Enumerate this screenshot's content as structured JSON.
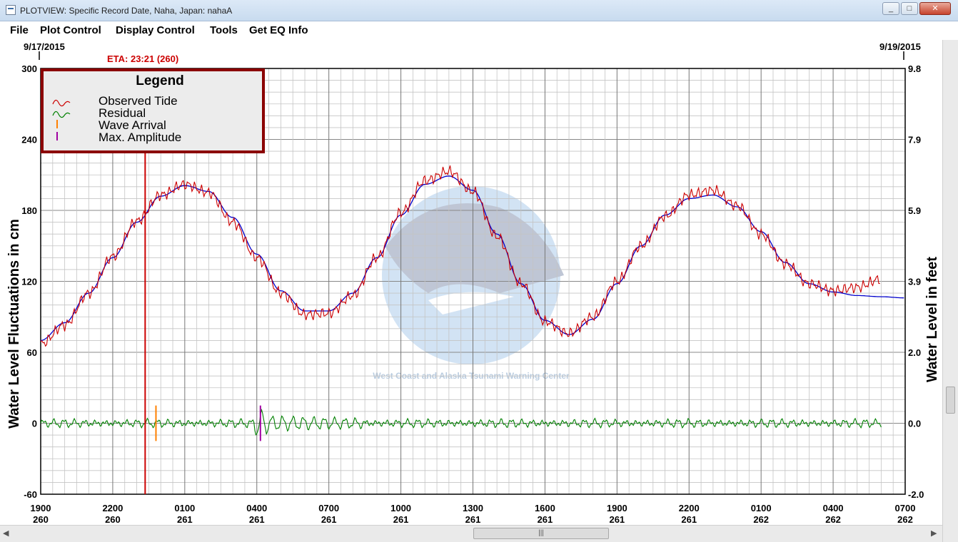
{
  "window": {
    "title": "PLOTVIEW: Specific Record Date, Naha, Japan: nahaA",
    "minimize": "_",
    "maximize": "□",
    "close": "✕"
  },
  "menu": [
    "File",
    "Plot Control",
    "Display Control",
    "Tools",
    "Get EQ Info"
  ],
  "plot": {
    "date_start": "9/17/2015",
    "date_end": "9/19/2015",
    "eta_label": "ETA: 23:21 (260)",
    "y_left_label": "Water Level Fluctuations in cm",
    "y_right_label": "Water Level in feet",
    "y_left_ticks": [
      "300",
      "240",
      "180",
      "120",
      "60",
      "0",
      "-60"
    ],
    "y_right_ticks": [
      "9.8",
      "7.9",
      "5.9",
      "3.9",
      "2.0",
      "0.0",
      "-2.0"
    ],
    "x_ticks": [
      {
        "time": "1900",
        "day": "260"
      },
      {
        "time": "2200",
        "day": "260"
      },
      {
        "time": "0100",
        "day": "261"
      },
      {
        "time": "0400",
        "day": "261"
      },
      {
        "time": "0700",
        "day": "261"
      },
      {
        "time": "1000",
        "day": "261"
      },
      {
        "time": "1300",
        "day": "261"
      },
      {
        "time": "1600",
        "day": "261"
      },
      {
        "time": "1900",
        "day": "261"
      },
      {
        "time": "2200",
        "day": "261"
      },
      {
        "time": "0100",
        "day": "262"
      },
      {
        "time": "0400",
        "day": "262"
      },
      {
        "time": "0700",
        "day": "262"
      }
    ],
    "legend": {
      "title": "Legend",
      "items": [
        {
          "label": "Observed Tide",
          "color": "#cc0000",
          "icon": "wave-icon"
        },
        {
          "label": "Residual",
          "color": "#008000",
          "icon": "wave-icon"
        },
        {
          "label": "Wave Arrival",
          "color": "#ff8000",
          "icon": "tick-icon"
        },
        {
          "label": "Max. Amplitude",
          "color": "#a000a0",
          "icon": "tick-icon"
        }
      ]
    },
    "watermark_text": "West Coast and Alaska Tsunami Warning Center"
  },
  "chart_data": {
    "type": "line",
    "x_unit": "hours since 19:00 day 260",
    "ylim": [
      -60,
      300
    ],
    "xlim": [
      0,
      36
    ],
    "series": [
      {
        "name": "Observed Tide",
        "color": "#cc0000",
        "x": [
          0,
          1,
          2,
          3,
          4,
          5,
          6,
          7,
          8,
          9,
          10,
          11,
          12,
          13,
          14,
          15,
          16,
          17,
          18,
          19,
          20,
          21,
          22,
          23,
          24,
          25,
          26,
          27,
          28,
          29,
          30,
          31,
          32,
          33,
          34,
          35
        ],
        "y": [
          67,
          83,
          110,
          141,
          171,
          193,
          202,
          195,
          170,
          140,
          110,
          92,
          93,
          108,
          140,
          178,
          205,
          213,
          196,
          158,
          118,
          86,
          76,
          90,
          120,
          150,
          175,
          193,
          197,
          184,
          160,
          135,
          118,
          112,
          115,
          122
        ]
      },
      {
        "name": "Fitted Tide",
        "color": "#0000cc",
        "x": [
          0,
          1,
          2,
          3,
          4,
          5,
          6,
          7,
          8,
          9,
          10,
          11,
          12,
          13,
          14,
          15,
          16,
          17,
          18,
          19,
          20,
          21,
          22,
          23,
          24,
          25,
          26,
          27,
          28,
          29,
          30,
          31,
          32,
          33,
          34,
          35,
          36
        ],
        "y": [
          70,
          85,
          110,
          140,
          170,
          192,
          201,
          196,
          174,
          143,
          112,
          95,
          95,
          110,
          140,
          176,
          202,
          209,
          197,
          160,
          118,
          87,
          75,
          88,
          118,
          150,
          176,
          190,
          193,
          183,
          162,
          136,
          118,
          111,
          108,
          107,
          106
        ]
      },
      {
        "name": "Residual",
        "color": "#008000",
        "y_baseline": 0,
        "amplitude_cm": 8
      }
    ],
    "markers": [
      {
        "name": "ETA",
        "x": 4.35,
        "color": "#cc0000"
      },
      {
        "name": "Wave Arrival",
        "x": 4.8,
        "color": "#ff8000"
      },
      {
        "name": "Max. Amplitude",
        "x": 9.15,
        "color": "#a000a0"
      }
    ]
  }
}
